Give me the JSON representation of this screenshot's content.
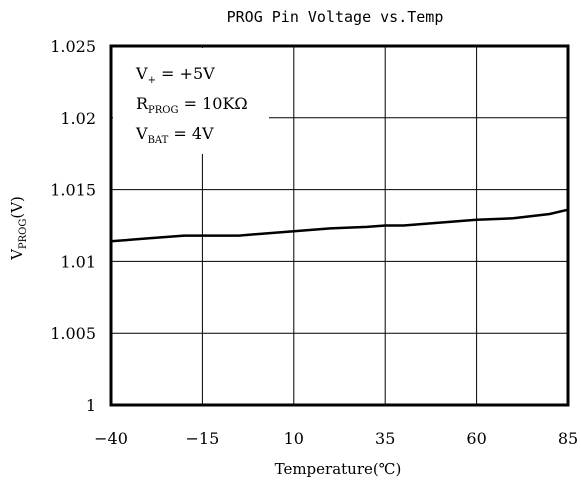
{
  "chart_data": {
    "type": "line",
    "title": "PROG Pin Voltage vs.Temp",
    "xlabel": "Temperature(℃)",
    "ylabel": {
      "main": "V",
      "sub": "PROG",
      "suffix": "(V)"
    },
    "xlim": [
      -40,
      85
    ],
    "ylim": [
      1.0,
      1.025
    ],
    "x_ticks": [
      -40,
      -15,
      10,
      35,
      60,
      85
    ],
    "x_tick_labels": [
      "−40",
      "−15",
      "10",
      "35",
      "60",
      "85"
    ],
    "y_ticks": [
      1.0,
      1.005,
      1.01,
      1.015,
      1.02,
      1.025
    ],
    "y_tick_labels": [
      "1",
      "1.005",
      "1.01",
      "1.015",
      "1.02",
      "1.025"
    ],
    "grid": true,
    "annotations": [
      {
        "main": "V",
        "sub": "+",
        "rest": " = +5V"
      },
      {
        "main": "R",
        "sub": "PROG",
        "rest": " = 10KΩ"
      },
      {
        "main": "V",
        "sub": "BAT",
        "rest": " = 4V"
      }
    ],
    "series": [
      {
        "x": [
          -40,
          -30,
          -20,
          -15,
          -5,
          0,
          10,
          20,
          30,
          35,
          40,
          50,
          60,
          70,
          80,
          85
        ],
        "values": [
          1.0114,
          1.0116,
          1.0118,
          1.0118,
          1.0118,
          1.0119,
          1.0121,
          1.0123,
          1.0124,
          1.0125,
          1.0125,
          1.0127,
          1.0129,
          1.013,
          1.0133,
          1.0136
        ]
      }
    ]
  }
}
